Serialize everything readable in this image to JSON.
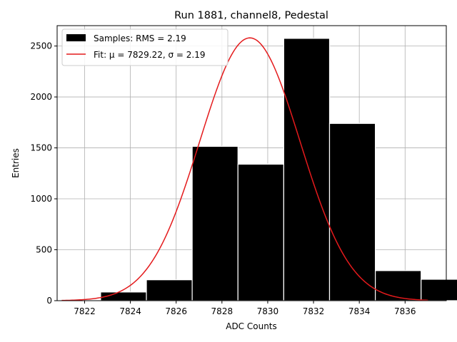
{
  "chart_data": {
    "type": "bar",
    "title": "Run 1881, channel8, Pedestal",
    "xlabel": "ADC Counts",
    "ylabel": "Entries",
    "xlim": [
      7820.8,
      7837.8
    ],
    "ylim": [
      0,
      2700
    ],
    "xticks": [
      7822,
      7824,
      7826,
      7828,
      7830,
      7832,
      7834,
      7836
    ],
    "yticks": [
      0,
      500,
      1000,
      1500,
      2000,
      2500
    ],
    "grid": true,
    "legend_position": "top-left",
    "bins": [
      {
        "x0": 7822.7,
        "x1": 7824.7,
        "value": 85
      },
      {
        "x0": 7824.7,
        "x1": 7826.7,
        "value": 205
      },
      {
        "x0": 7826.7,
        "x1": 7828.7,
        "value": 1515
      },
      {
        "x0": 7828.7,
        "x1": 7830.7,
        "value": 1340
      },
      {
        "x0": 7830.7,
        "x1": 7832.7,
        "value": 2575
      },
      {
        "x0": 7832.7,
        "x1": 7834.7,
        "value": 1740
      },
      {
        "x0": 7834.7,
        "x1": 7836.7,
        "value": 295
      },
      {
        "x0": 7836.7,
        "x1": 7838.7,
        "value": 210
      }
    ],
    "series": [
      {
        "name": "Samples: RMS = 2.19",
        "kind": "histogram",
        "color": "#000000",
        "edge_color": "#ffffff"
      },
      {
        "name": "Fit: μ = 7829.22, σ = 2.19",
        "kind": "gaussian",
        "color": "#e41a1c",
        "mu": 7829.22,
        "sigma": 2.19,
        "peak": 2580,
        "x_range": [
          7821.0,
          7837.0
        ]
      }
    ]
  }
}
